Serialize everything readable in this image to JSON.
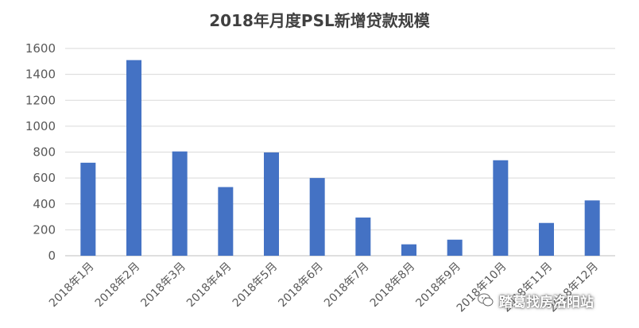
{
  "chart_data": {
    "type": "bar",
    "title": "2018年月度PSL新增贷款规模",
    "categories": [
      "2018年1月",
      "2018年2月",
      "2018年3月",
      "2018年4月",
      "2018年5月",
      "2018年6月",
      "2018年7月",
      "2018年8月",
      "2018年9月",
      "2018年10月",
      "2018年11月",
      "2018年12月"
    ],
    "values": [
      718,
      1510,
      805,
      530,
      797,
      600,
      295,
      88,
      124,
      737,
      253,
      427
    ],
    "ylim": [
      0,
      1600
    ],
    "yticks": [
      0,
      200,
      400,
      600,
      800,
      1000,
      1200,
      1400,
      1600
    ],
    "xlabel": "",
    "ylabel": "",
    "grid": true,
    "bar_color": "#4472C4"
  },
  "watermark": {
    "text": "踏葛找房洛阳站",
    "icon": "wechat-icon"
  }
}
